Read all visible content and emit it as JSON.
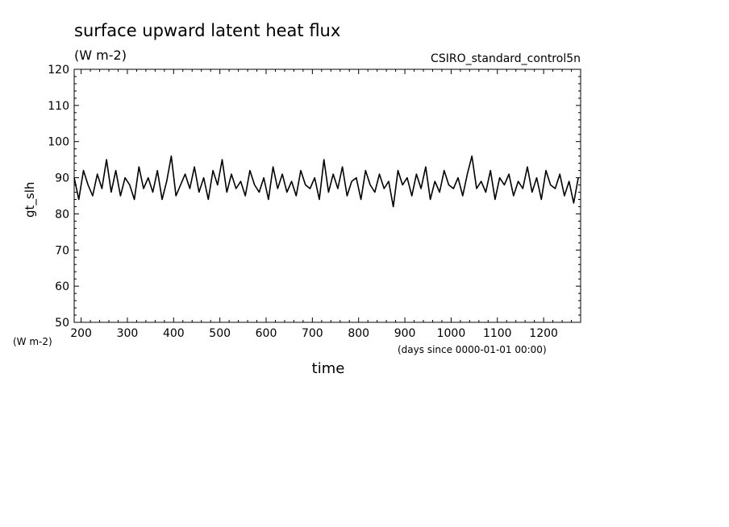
{
  "chart_data": {
    "type": "line",
    "title": "surface upward latent heat flux",
    "units": "(W m-2)",
    "dataset": "CSIRO_standard_control5n",
    "xlabel": "time",
    "xunits": "(days since 0000-01-01 00:00)",
    "ylabel": "gt_slh",
    "yunits": "(W m-2)",
    "xlim": [
      185,
      1280
    ],
    "ylim": [
      50,
      120
    ],
    "xticks": [
      200,
      300,
      400,
      500,
      600,
      700,
      800,
      900,
      1000,
      1100,
      1200
    ],
    "yticks": [
      50,
      60,
      70,
      80,
      90,
      100,
      110,
      120
    ],
    "grid": false,
    "series": [
      {
        "name": "",
        "color": "#000000",
        "x": [
          185,
          195,
          205,
          215,
          225,
          235,
          245,
          255,
          265,
          275,
          285,
          295,
          305,
          315,
          325,
          335,
          345,
          355,
          365,
          375,
          385,
          395,
          405,
          415,
          425,
          435,
          445,
          455,
          465,
          475,
          485,
          495,
          505,
          515,
          525,
          535,
          545,
          555,
          565,
          575,
          585,
          595,
          605,
          615,
          625,
          635,
          645,
          655,
          665,
          675,
          685,
          695,
          705,
          715,
          725,
          735,
          745,
          755,
          765,
          775,
          785,
          795,
          805,
          815,
          825,
          835,
          845,
          855,
          865,
          875,
          885,
          895,
          905,
          915,
          925,
          935,
          945,
          955,
          965,
          975,
          985,
          995,
          1005,
          1015,
          1025,
          1035,
          1045,
          1055,
          1065,
          1075,
          1085,
          1095,
          1105,
          1115,
          1125,
          1135,
          1145,
          1155,
          1165,
          1175,
          1185,
          1195,
          1205,
          1215,
          1225,
          1235,
          1245,
          1255,
          1265,
          1275
        ],
        "values": [
          90,
          84,
          92,
          88,
          85,
          91,
          87,
          95,
          86,
          92,
          85,
          90,
          88,
          84,
          93,
          87,
          90,
          86,
          92,
          84,
          89,
          96,
          85,
          88,
          91,
          87,
          93,
          86,
          90,
          84,
          92,
          88,
          95,
          86,
          91,
          87,
          89,
          85,
          92,
          88,
          86,
          90,
          84,
          93,
          87,
          91,
          86,
          89,
          85,
          92,
          88,
          87,
          90,
          84,
          95,
          86,
          91,
          87,
          93,
          85,
          89,
          90,
          84,
          92,
          88,
          86,
          91,
          87,
          89,
          82,
          92,
          88,
          90,
          85,
          91,
          87,
          93,
          84,
          89,
          86,
          92,
          88,
          87,
          90,
          85,
          91,
          96,
          87,
          89,
          86,
          92,
          84,
          90,
          88,
          91,
          85,
          89,
          87,
          93,
          86,
          90,
          84,
          92,
          88,
          87,
          91,
          85,
          89,
          83,
          90
        ]
      }
    ]
  }
}
